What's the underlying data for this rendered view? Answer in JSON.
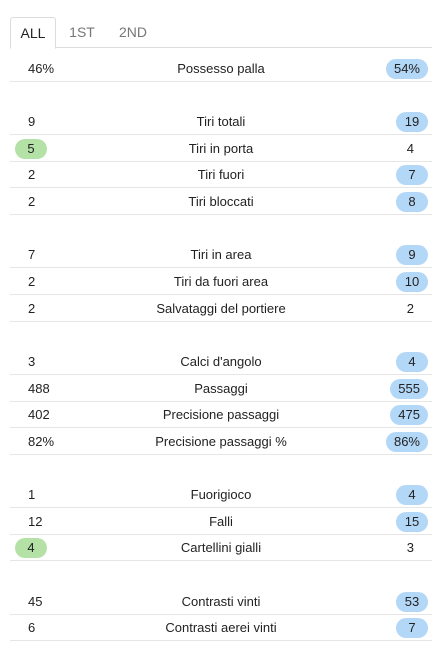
{
  "tabs": [
    {
      "label": "ALL",
      "active": true
    },
    {
      "label": "1ST",
      "active": false
    },
    {
      "label": "2ND",
      "active": false
    }
  ],
  "stats": [
    {
      "label": "Possesso palla",
      "home": "46%",
      "away": "54%",
      "highlight": "away"
    },
    {
      "label": "Tiri totali",
      "home": "9",
      "away": "19",
      "highlight": "away"
    },
    {
      "label": "Tiri in porta",
      "home": "5",
      "away": "4",
      "highlight": "home"
    },
    {
      "label": "Tiri fuori",
      "home": "2",
      "away": "7",
      "highlight": "away"
    },
    {
      "label": "Tiri bloccati",
      "home": "2",
      "away": "8",
      "highlight": "away"
    },
    {
      "label": "Tiri in area",
      "home": "7",
      "away": "9",
      "highlight": "away"
    },
    {
      "label": "Tiri da fuori area",
      "home": "2",
      "away": "10",
      "highlight": "away"
    },
    {
      "label": "Salvataggi del portiere",
      "home": "2",
      "away": "2",
      "highlight": "none"
    },
    {
      "label": "Calci d'angolo",
      "home": "3",
      "away": "4",
      "highlight": "away"
    },
    {
      "label": "Passaggi",
      "home": "488",
      "away": "555",
      "highlight": "away"
    },
    {
      "label": "Precisione passaggi",
      "home": "402",
      "away": "475",
      "highlight": "away"
    },
    {
      "label": "Precisione passaggi %",
      "home": "82%",
      "away": "86%",
      "highlight": "away"
    },
    {
      "label": "Fuorigioco",
      "home": "1",
      "away": "4",
      "highlight": "away"
    },
    {
      "label": "Falli",
      "home": "12",
      "away": "15",
      "highlight": "away"
    },
    {
      "label": "Cartellini gialli",
      "home": "4",
      "away": "3",
      "highlight": "home"
    },
    {
      "label": "Contrasti vinti",
      "home": "45",
      "away": "53",
      "highlight": "away"
    },
    {
      "label": "Contrasti aerei vinti",
      "home": "6",
      "away": "7",
      "highlight": "away"
    }
  ],
  "colors": {
    "home_highlight": "#b4e2a6",
    "away_highlight": "#b3d7f7"
  }
}
